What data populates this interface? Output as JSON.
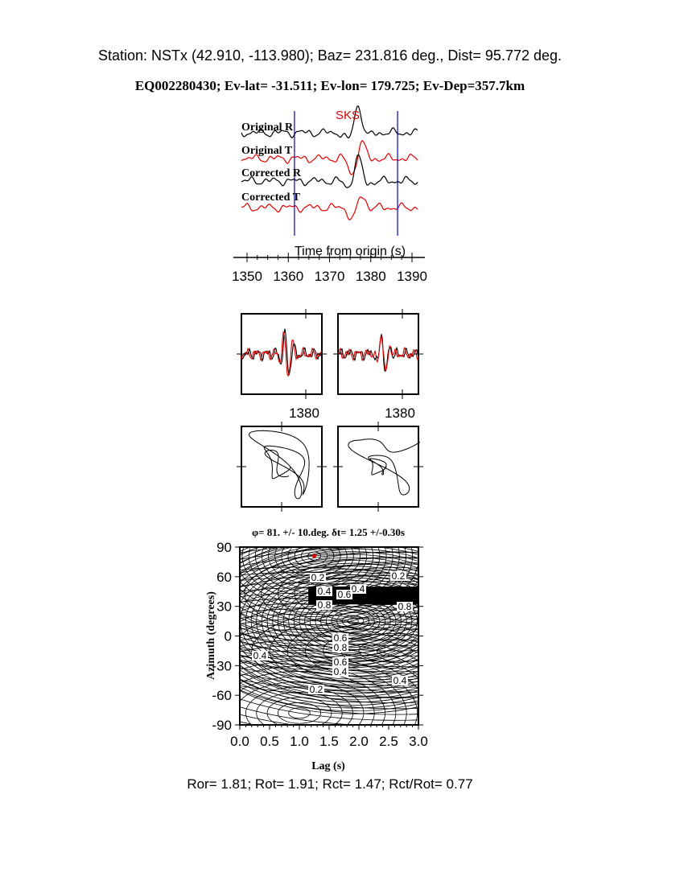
{
  "header": {
    "station_line": "Station: NSTx (42.910, -113.980); Baz=  231.816 deg., Dist=   95.772 deg.",
    "event_line": "EQ002280430; Ev-lat= -31.511; Ev-lon= 179.725; Ev-Dep=357.7km"
  },
  "footer": "Ror= 1.81; Rot= 1.91; Rct= 1.47; Rct/Rot= 0.77",
  "colors": {
    "trace_r": "#000000",
    "trace_t": "#e00000",
    "window": "#0000cc",
    "best": "#e00000"
  },
  "chart_data": [
    {
      "type": "line",
      "phase_label": "SKS",
      "trace_labels": [
        "Original R",
        "Original T",
        "Corrected R",
        "Corrected T"
      ],
      "xlabel": "Time from origin (s)",
      "xticks": [
        "1350",
        "1360",
        "1370",
        "1380",
        "1390"
      ],
      "xlim": [
        1347,
        1392
      ],
      "window": [
        1361.5,
        1386.5
      ]
    },
    {
      "type": "line",
      "panel": "waveform-overlay",
      "xtick": "1380",
      "panels": 2
    },
    {
      "type": "scatter",
      "panel": "particle-motion",
      "panels": 2
    },
    {
      "type": "heatmap",
      "title": "φ= 81. +/- 10.deg. δt= 1.25 +/-0.30s",
      "xlabel": "Lag (s)",
      "ylabel": "Azimuth (degrees)",
      "xticks": [
        "0.0",
        "0.5",
        "1.0",
        "1.5",
        "2.0",
        "2.5",
        "3.0"
      ],
      "yticks": [
        "90",
        "60",
        "30",
        "0",
        "-30",
        "-60",
        "-90"
      ],
      "xlim": [
        0,
        3
      ],
      "ylim": [
        -90,
        90
      ],
      "contour_labels": [
        "0.2",
        "0.2",
        "0.4",
        "0.4",
        "0.6",
        "0.8",
        "0.8",
        "0.6",
        "0.8",
        "0.6",
        "0.4",
        "0.4",
        "0.2",
        "0.4"
      ],
      "best": {
        "lag": 1.25,
        "azimuth": 81
      }
    }
  ]
}
